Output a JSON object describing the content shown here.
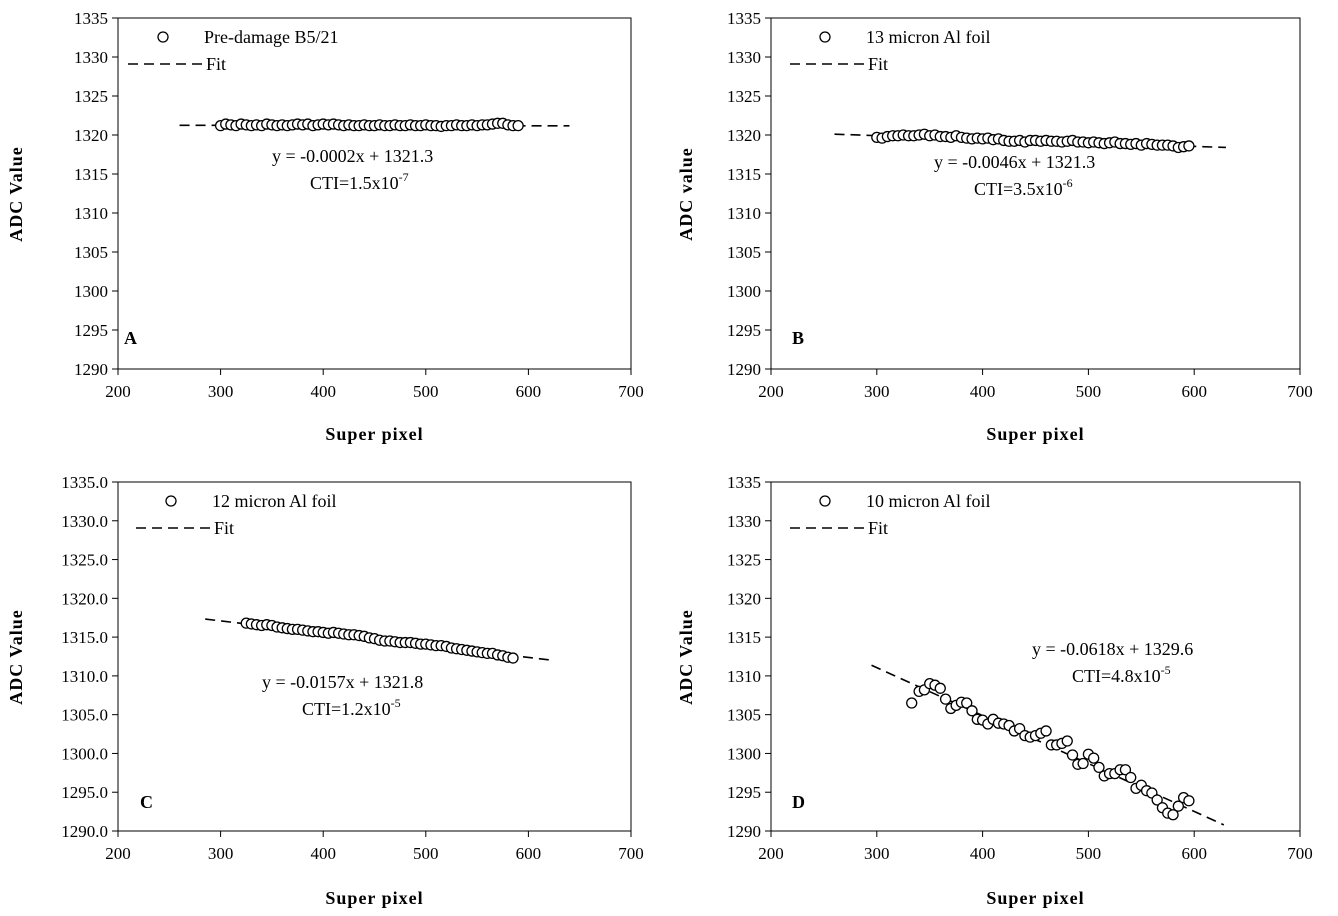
{
  "chart_data": [
    {
      "type": "scatter",
      "panel_label": "A",
      "xlabel": "Super pixel",
      "ylabel": "ADC Value",
      "xlim": [
        200,
        700
      ],
      "ylim": [
        1290,
        1335
      ],
      "x_ticks": [
        "200",
        "300",
        "400",
        "500",
        "600",
        "700"
      ],
      "y_ticks": [
        "1290",
        "1295",
        "1300",
        "1305",
        "1310",
        "1315",
        "1320",
        "1325",
        "1330",
        "1335"
      ],
      "legend": {
        "placement": "top-left",
        "marker_label": "Pre-damage B5/21",
        "line_label": "Fit"
      },
      "equation": "y = -0.0002x + 1321.3",
      "cti_prefix": "CTI=1.5x10",
      "cti_exp": "-7",
      "fit": {
        "slope": -0.0002,
        "intercept": 1321.3,
        "x_range": [
          260,
          640
        ]
      },
      "series": [
        {
          "name": "Pre-damage B5/21",
          "x": [
            300,
            305,
            310,
            315,
            320,
            325,
            330,
            335,
            340,
            345,
            350,
            355,
            360,
            365,
            370,
            375,
            380,
            385,
            390,
            395,
            400,
            405,
            410,
            415,
            420,
            425,
            430,
            435,
            440,
            445,
            450,
            455,
            460,
            465,
            470,
            475,
            480,
            485,
            490,
            495,
            500,
            505,
            510,
            515,
            520,
            525,
            530,
            535,
            540,
            545,
            550,
            555,
            560,
            565,
            570,
            575,
            580,
            585,
            590
          ],
          "y": [
            1321.2,
            1321.4,
            1321.3,
            1321.2,
            1321.4,
            1321.3,
            1321.2,
            1321.3,
            1321.2,
            1321.4,
            1321.3,
            1321.2,
            1321.3,
            1321.2,
            1321.3,
            1321.4,
            1321.3,
            1321.4,
            1321.2,
            1321.3,
            1321.4,
            1321.3,
            1321.4,
            1321.3,
            1321.2,
            1321.3,
            1321.2,
            1321.2,
            1321.3,
            1321.2,
            1321.2,
            1321.3,
            1321.2,
            1321.2,
            1321.3,
            1321.2,
            1321.2,
            1321.3,
            1321.2,
            1321.2,
            1321.3,
            1321.2,
            1321.2,
            1321.1,
            1321.2,
            1321.2,
            1321.3,
            1321.2,
            1321.2,
            1321.3,
            1321.2,
            1321.3,
            1321.3,
            1321.4,
            1321.5,
            1321.5,
            1321.3,
            1321.2,
            1321.2
          ]
        }
      ]
    },
    {
      "type": "scatter",
      "panel_label": "B",
      "xlabel": "Super pixel",
      "ylabel": "ADC value",
      "xlim": [
        200,
        700
      ],
      "ylim": [
        1290,
        1335
      ],
      "x_ticks": [
        "200",
        "300",
        "400",
        "500",
        "600",
        "700"
      ],
      "y_ticks": [
        "1290",
        "1295",
        "1300",
        "1305",
        "1310",
        "1315",
        "1320",
        "1325",
        "1330",
        "1335"
      ],
      "legend": {
        "placement": "top-left",
        "marker_label": "13 micron Al foil",
        "line_label": "Fit"
      },
      "equation": "y = -0.0046x + 1321.3",
      "cti_prefix": "CTI=3.5x10",
      "cti_exp": "-6",
      "fit": {
        "slope": -0.0046,
        "intercept": 1321.3,
        "x_range": [
          260,
          630
        ]
      },
      "series": [
        {
          "name": "13 micron Al foil",
          "x": [
            300,
            305,
            310,
            315,
            320,
            325,
            330,
            335,
            340,
            345,
            350,
            355,
            360,
            365,
            370,
            375,
            380,
            385,
            390,
            395,
            400,
            405,
            410,
            415,
            420,
            425,
            430,
            435,
            440,
            445,
            450,
            455,
            460,
            465,
            470,
            475,
            480,
            485,
            490,
            495,
            500,
            505,
            510,
            515,
            520,
            525,
            530,
            535,
            540,
            545,
            550,
            555,
            560,
            565,
            570,
            575,
            580,
            585,
            590,
            595
          ],
          "y": [
            1319.7,
            1319.6,
            1319.8,
            1319.9,
            1319.9,
            1320.0,
            1319.9,
            1319.9,
            1320.0,
            1320.1,
            1319.9,
            1320.0,
            1319.8,
            1319.8,
            1319.7,
            1319.9,
            1319.7,
            1319.6,
            1319.5,
            1319.6,
            1319.5,
            1319.6,
            1319.4,
            1319.5,
            1319.3,
            1319.2,
            1319.2,
            1319.3,
            1319.1,
            1319.3,
            1319.3,
            1319.2,
            1319.3,
            1319.2,
            1319.2,
            1319.1,
            1319.2,
            1319.3,
            1319.1,
            1319.1,
            1319.0,
            1319.1,
            1319.0,
            1318.9,
            1319.0,
            1319.1,
            1318.9,
            1318.9,
            1318.8,
            1318.9,
            1318.7,
            1318.9,
            1318.8,
            1318.7,
            1318.7,
            1318.7,
            1318.6,
            1318.4,
            1318.5,
            1318.6
          ]
        }
      ]
    },
    {
      "type": "scatter",
      "panel_label": "C",
      "xlabel": "Super pixel",
      "ylabel": "ADC Value",
      "xlim": [
        200,
        700
      ],
      "ylim": [
        1290,
        1335
      ],
      "x_ticks": [
        "200",
        "300",
        "400",
        "500",
        "600",
        "700"
      ],
      "y_ticks": [
        "1290.0",
        "1295.0",
        "1300.0",
        "1305.0",
        "1310.0",
        "1315.0",
        "1320.0",
        "1325.0",
        "1330.0",
        "1335.0"
      ],
      "legend": {
        "placement": "top-left",
        "marker_label": "12 micron Al foil",
        "line_label": "Fit"
      },
      "equation": "y = -0.0157x + 1321.8",
      "cti_prefix": "CTI=1.2x10",
      "cti_exp": "-5",
      "fit": {
        "slope": -0.0157,
        "intercept": 1321.8,
        "x_range": [
          285,
          625
        ]
      },
      "series": [
        {
          "name": "12 micron Al foil",
          "x": [
            325,
            330,
            335,
            340,
            345,
            350,
            355,
            360,
            365,
            370,
            375,
            380,
            385,
            390,
            395,
            400,
            405,
            410,
            415,
            420,
            425,
            430,
            435,
            440,
            445,
            450,
            455,
            460,
            465,
            470,
            475,
            480,
            485,
            490,
            495,
            500,
            505,
            510,
            515,
            520,
            525,
            530,
            535,
            540,
            545,
            550,
            555,
            560,
            565,
            570,
            575,
            580,
            585
          ],
          "y": [
            1316.8,
            1316.7,
            1316.6,
            1316.5,
            1316.6,
            1316.5,
            1316.3,
            1316.2,
            1316.1,
            1316.0,
            1316.0,
            1315.9,
            1315.8,
            1315.7,
            1315.7,
            1315.6,
            1315.5,
            1315.6,
            1315.5,
            1315.4,
            1315.3,
            1315.3,
            1315.2,
            1315.1,
            1314.9,
            1314.8,
            1314.6,
            1314.5,
            1314.5,
            1314.4,
            1314.3,
            1314.3,
            1314.3,
            1314.2,
            1314.1,
            1314.1,
            1314.0,
            1313.9,
            1313.9,
            1313.8,
            1313.6,
            1313.5,
            1313.4,
            1313.3,
            1313.2,
            1313.1,
            1313.0,
            1312.9,
            1312.9,
            1312.7,
            1312.6,
            1312.4,
            1312.3
          ]
        }
      ]
    },
    {
      "type": "scatter",
      "panel_label": "D",
      "xlabel": "Super pixel",
      "ylabel": "ADC Value",
      "xlim": [
        200,
        700
      ],
      "ylim": [
        1290,
        1335
      ],
      "x_ticks": [
        "200",
        "300",
        "400",
        "500",
        "600",
        "700"
      ],
      "y_ticks": [
        "1290",
        "1295",
        "1300",
        "1305",
        "1310",
        "1315",
        "1320",
        "1325",
        "1330",
        "1335"
      ],
      "legend": {
        "placement": "top-left",
        "marker_label": "10 micron Al foil",
        "line_label": "Fit"
      },
      "equation": "y = -0.0618x + 1329.6",
      "cti_prefix": "CTI=4.8x10",
      "cti_exp": "-5",
      "fit": {
        "slope": -0.0618,
        "intercept": 1329.6,
        "x_range": [
          295,
          628
        ]
      },
      "series": [
        {
          "name": "10 micron Al foil",
          "x": [
            333,
            340,
            345,
            350,
            355,
            360,
            365,
            370,
            375,
            380,
            385,
            390,
            395,
            400,
            405,
            410,
            415,
            420,
            425,
            430,
            435,
            440,
            445,
            450,
            455,
            460,
            465,
            470,
            475,
            480,
            485,
            490,
            495,
            500,
            505,
            510,
            515,
            520,
            525,
            530,
            535,
            540,
            545,
            550,
            555,
            560,
            565,
            570,
            575,
            580,
            585,
            590,
            595
          ],
          "y": [
            1306.5,
            1308.0,
            1308.2,
            1309.0,
            1308.8,
            1308.4,
            1307.0,
            1305.8,
            1306.2,
            1306.6,
            1306.5,
            1305.5,
            1304.4,
            1304.3,
            1303.8,
            1304.4,
            1303.9,
            1303.8,
            1303.6,
            1302.9,
            1303.2,
            1302.3,
            1302.1,
            1302.3,
            1302.6,
            1302.9,
            1301.1,
            1301.1,
            1301.3,
            1301.6,
            1299.8,
            1298.6,
            1298.7,
            1299.9,
            1299.4,
            1298.2,
            1297.1,
            1297.4,
            1297.4,
            1297.9,
            1297.9,
            1296.9,
            1295.5,
            1295.9,
            1295.2,
            1294.9,
            1294.0,
            1293.0,
            1292.3,
            1292.1,
            1293.2,
            1294.3,
            1293.9
          ]
        }
      ]
    }
  ]
}
